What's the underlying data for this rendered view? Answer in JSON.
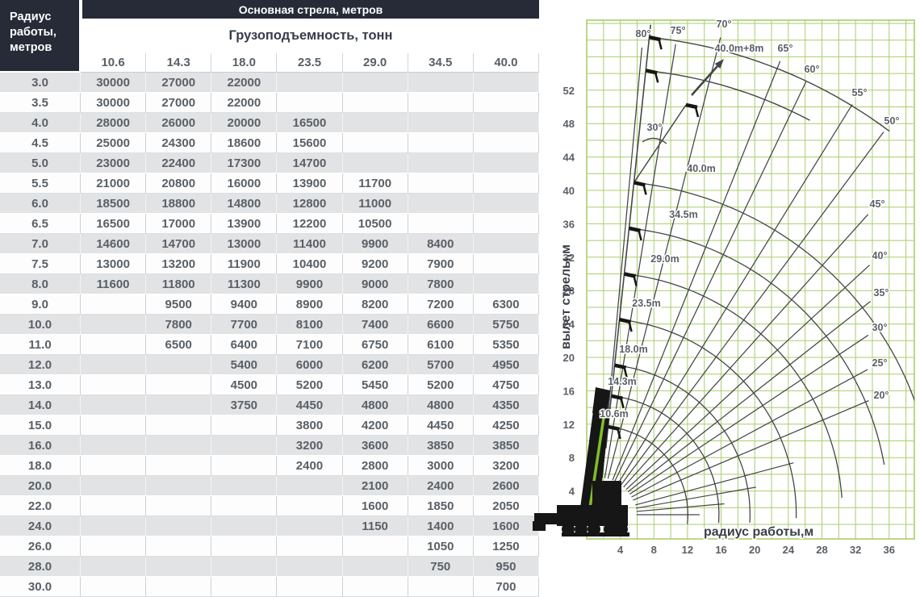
{
  "table": {
    "radius_header": "Радиус работы, метров",
    "boom_header": "Основная стрела, метров",
    "capacity_header": "Грузоподъемность, тонн",
    "boom_lengths": [
      "10.6",
      "14.3",
      "18.0",
      "23.5",
      "29.0",
      "34.5",
      "40.0"
    ],
    "rows": [
      {
        "radius": "3.0",
        "values": [
          "30000",
          "27000",
          "22000",
          "",
          "",
          "",
          ""
        ]
      },
      {
        "radius": "3.5",
        "values": [
          "30000",
          "27000",
          "22000",
          "",
          "",
          "",
          ""
        ]
      },
      {
        "radius": "4.0",
        "values": [
          "28000",
          "26000",
          "20000",
          "16500",
          "",
          "",
          ""
        ]
      },
      {
        "radius": "4.5",
        "values": [
          "25000",
          "24300",
          "18600",
          "15600",
          "",
          "",
          ""
        ]
      },
      {
        "radius": "5.0",
        "values": [
          "23000",
          "22400",
          "17300",
          "14700",
          "",
          "",
          ""
        ]
      },
      {
        "radius": "5.5",
        "values": [
          "21000",
          "20800",
          "16000",
          "13900",
          "11700",
          "",
          ""
        ]
      },
      {
        "radius": "6.0",
        "values": [
          "18500",
          "18800",
          "14800",
          "12800",
          "11000",
          "",
          ""
        ]
      },
      {
        "radius": "6.5",
        "values": [
          "16500",
          "17000",
          "13900",
          "12200",
          "10500",
          "",
          ""
        ]
      },
      {
        "radius": "7.0",
        "values": [
          "14600",
          "14700",
          "13000",
          "11400",
          "9900",
          "8400",
          ""
        ]
      },
      {
        "radius": "7.5",
        "values": [
          "13000",
          "13200",
          "11900",
          "10400",
          "9200",
          "7900",
          ""
        ]
      },
      {
        "radius": "8.0",
        "values": [
          "11600",
          "11800",
          "11300",
          "9900",
          "9000",
          "7800",
          ""
        ]
      },
      {
        "radius": "9.0",
        "values": [
          "",
          "9500",
          "9400",
          "8900",
          "8200",
          "7200",
          "6300"
        ]
      },
      {
        "radius": "10.0",
        "values": [
          "",
          "7800",
          "7700",
          "8100",
          "7400",
          "6600",
          "5750"
        ]
      },
      {
        "radius": "11.0",
        "values": [
          "",
          "6500",
          "6400",
          "7100",
          "6750",
          "6100",
          "5350"
        ]
      },
      {
        "radius": "12.0",
        "values": [
          "",
          "",
          "5400",
          "6000",
          "6200",
          "5700",
          "4950"
        ]
      },
      {
        "radius": "13.0",
        "values": [
          "",
          "",
          "4500",
          "5200",
          "5450",
          "5200",
          "4750"
        ]
      },
      {
        "radius": "14.0",
        "values": [
          "",
          "",
          "3750",
          "4450",
          "4800",
          "4800",
          "4350"
        ]
      },
      {
        "radius": "15.0",
        "values": [
          "",
          "",
          "",
          "3800",
          "4200",
          "4450",
          "4250"
        ]
      },
      {
        "radius": "16.0",
        "values": [
          "",
          "",
          "",
          "3200",
          "3600",
          "3850",
          "3850"
        ]
      },
      {
        "radius": "18.0",
        "values": [
          "",
          "",
          "",
          "2400",
          "2800",
          "3000",
          "3200"
        ]
      },
      {
        "radius": "20.0",
        "values": [
          "",
          "",
          "",
          "",
          "2100",
          "2400",
          "2600"
        ]
      },
      {
        "radius": "22.0",
        "values": [
          "",
          "",
          "",
          "",
          "1600",
          "1850",
          "2050"
        ]
      },
      {
        "radius": "24.0",
        "values": [
          "",
          "",
          "",
          "",
          "1150",
          "1400",
          "1600"
        ]
      },
      {
        "radius": "26.0",
        "values": [
          "",
          "",
          "",
          "",
          "",
          "1050",
          "1250"
        ]
      },
      {
        "radius": "28.0",
        "values": [
          "",
          "",
          "",
          "",
          "",
          "750",
          "950"
        ]
      },
      {
        "radius": "30.0",
        "values": [
          "",
          "",
          "",
          "",
          "",
          "",
          "700"
        ]
      }
    ]
  },
  "chart_data": {
    "type": "line",
    "title": "",
    "xlabel": "радиус работы,м",
    "ylabel": "вылет стрелы,м",
    "x_ticks": [
      4,
      8,
      12,
      16,
      20,
      24,
      28,
      32,
      36
    ],
    "y_ticks": [
      4,
      8,
      12,
      16,
      20,
      24,
      28,
      32,
      36,
      40,
      44,
      48,
      52
    ],
    "xlim": [
      0,
      39
    ],
    "ylim": [
      0,
      60
    ],
    "grid": true,
    "grid_step_m": 2,
    "boom_curves": [
      {
        "length_m": 10.6,
        "label": "10.6m",
        "min_angle_deg": -6
      },
      {
        "length_m": 14.3,
        "label": "14.3m",
        "min_angle_deg": -4
      },
      {
        "length_m": 18.0,
        "label": "18.0m",
        "min_angle_deg": -3
      },
      {
        "length_m": 23.5,
        "label": "23.5m",
        "min_angle_deg": -1
      },
      {
        "length_m": 29.0,
        "label": "29.0m",
        "min_angle_deg": 4
      },
      {
        "length_m": 34.5,
        "label": "34.5m",
        "min_angle_deg": 10
      },
      {
        "length_m": 40.0,
        "label": "40.0m",
        "min_angle_deg": 16
      }
    ],
    "jib_curves": [
      {
        "radius_m": 57.5,
        "min_angle_deg": 53,
        "max_angle_deg": 84,
        "label": "40.0m+8m"
      },
      {
        "radius_m": 53.5,
        "min_angle_deg": 62,
        "max_angle_deg": 84,
        "label": ""
      }
    ],
    "jib_offset_label": "30°",
    "boom_angle_lines_deg": [
      20,
      25,
      30,
      35,
      40,
      45,
      50,
      55,
      60,
      65,
      70,
      75,
      80
    ],
    "unlabeled_angle_lines_deg": [
      0,
      5,
      10,
      15
    ],
    "boom_line_angle_deg": 84
  },
  "colors": {
    "header_bg": "#262b37",
    "header_text": "#ffffff",
    "row_stripe": "#e2e3e5",
    "table_text": "#596066",
    "grid_green": "#a9ce6c",
    "curve": "#43464a",
    "axis_text": "#5a5f66",
    "axis_title": "#3b4047",
    "crane_black": "#161616",
    "crane_green": "#80bf27"
  }
}
